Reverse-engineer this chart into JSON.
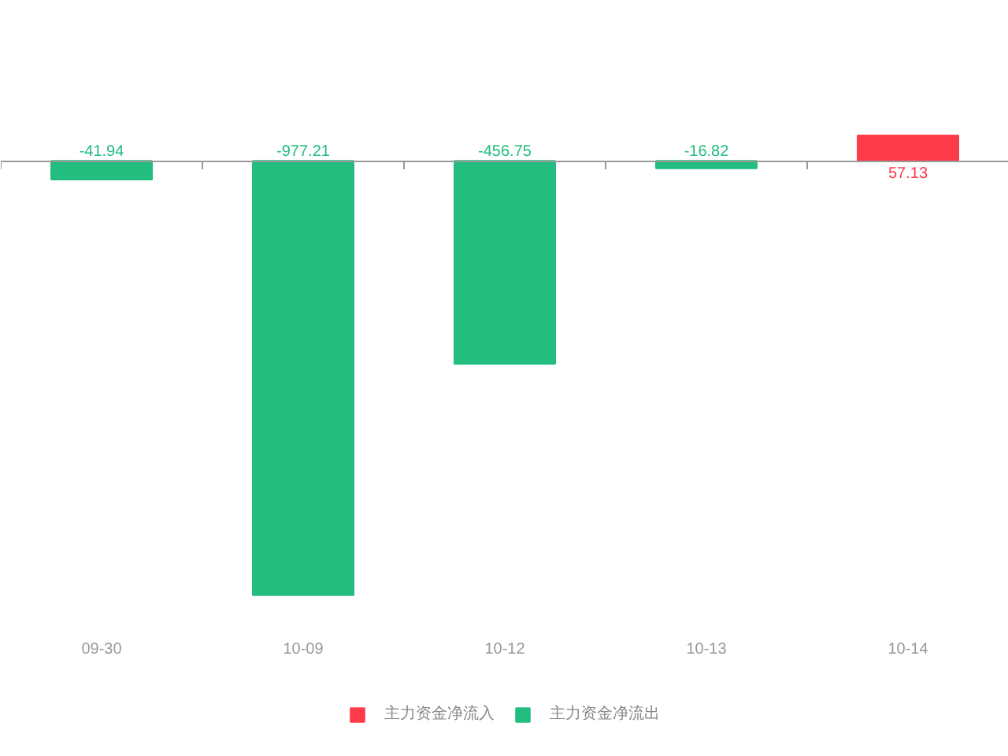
{
  "chart_data": {
    "type": "bar",
    "categories": [
      "09-30",
      "10-09",
      "10-12",
      "10-13",
      "10-14"
    ],
    "series": [
      {
        "name": "主力资金净流入",
        "color": "#fd3b4a",
        "values": [
          null,
          null,
          null,
          null,
          57.13
        ]
      },
      {
        "name": "主力资金净流出",
        "color": "#22bd7f",
        "values": [
          -41.94,
          -977.21,
          -456.75,
          -16.82,
          null
        ]
      }
    ],
    "stacked": true,
    "data_labels": true,
    "tick_labels": "x",
    "legend": "bottom"
  }
}
